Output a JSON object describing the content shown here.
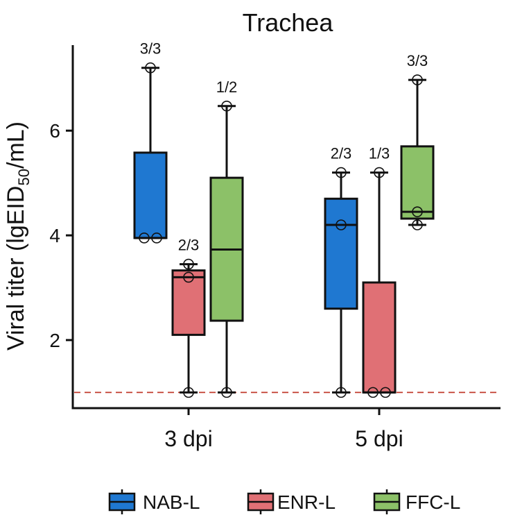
{
  "chart_data": {
    "type": "box",
    "title": "Trachea",
    "ylabel": "Viral titer (lgEID",
    "ylabel_sub": "50",
    "ylabel_end": "/mL)",
    "xlabel": "",
    "categories": [
      "3 dpi",
      "5 dpi"
    ],
    "ylim": [
      0.7,
      7.7
    ],
    "yticks": [
      2,
      4,
      6
    ],
    "detection_limit": 1.0,
    "grid": false,
    "legend_position": "bottom",
    "series": [
      {
        "name": "NAB-L",
        "color": "#1f78d1",
        "boxes": [
          {
            "min": 3.95,
            "q1": 3.95,
            "median": 3.95,
            "q3": 5.58,
            "max": 7.2,
            "points": [
              3.95,
              3.95,
              7.2
            ],
            "positive": "3/3"
          },
          {
            "min": 1.0,
            "q1": 2.6,
            "median": 4.2,
            "q3": 4.7,
            "max": 5.2,
            "points": [
              1.0,
              4.2,
              5.2
            ],
            "positive": "2/3"
          }
        ]
      },
      {
        "name": "ENR-L",
        "color": "#e07075",
        "boxes": [
          {
            "min": 1.0,
            "q1": 2.1,
            "median": 3.2,
            "q3": 3.33,
            "max": 3.45,
            "points": [
              1.0,
              3.2,
              3.45
            ],
            "positive": "2/3"
          },
          {
            "min": 1.0,
            "q1": 1.0,
            "median": 1.0,
            "q3": 3.1,
            "max": 5.2,
            "points": [
              1.0,
              1.0,
              5.2
            ],
            "positive": "1/3"
          }
        ]
      },
      {
        "name": "FFC-L",
        "color": "#8cc168",
        "boxes": [
          {
            "min": 1.0,
            "q1": 2.37,
            "median": 3.73,
            "q3": 5.1,
            "max": 6.47,
            "points": [
              1.0,
              6.47
            ],
            "positive": "1/2"
          },
          {
            "min": 4.2,
            "q1": 4.32,
            "median": 4.45,
            "q3": 5.7,
            "max": 6.97,
            "points": [
              4.2,
              4.45,
              6.97
            ],
            "positive": "3/3"
          }
        ]
      }
    ]
  }
}
